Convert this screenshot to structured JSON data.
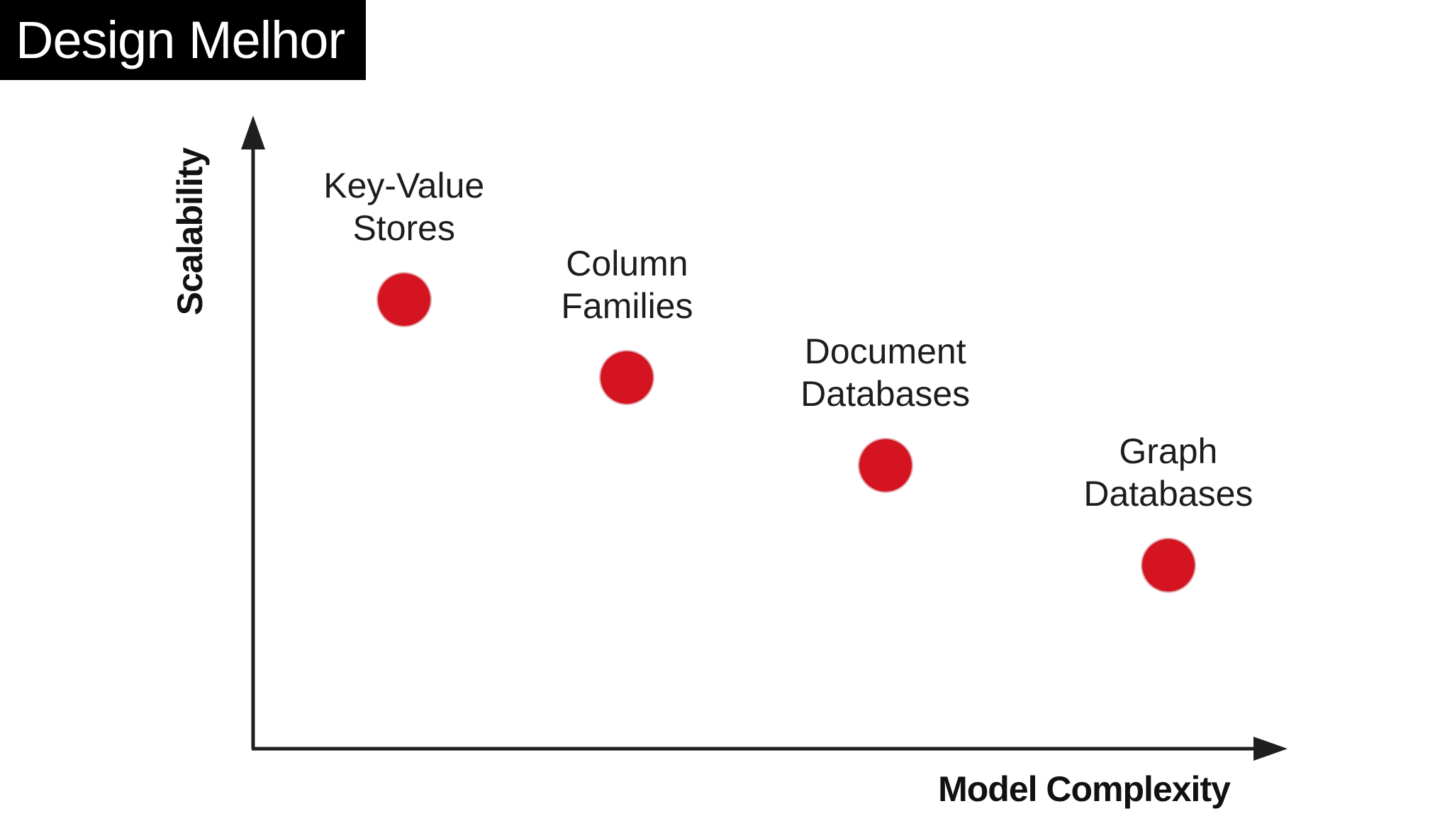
{
  "banner": {
    "title": "Design Melhor"
  },
  "chart_data": {
    "type": "scatter",
    "title": "",
    "xlabel": "Model Complexity",
    "ylabel": "Scalability",
    "axes_numeric": false,
    "gridlines": false,
    "legend": "none",
    "axis_style": "arrows, no tick marks or tick labels",
    "trend_note": "scalability decreases as model complexity increases",
    "marker": {
      "shape": "circle",
      "color": "#d41420",
      "radius_px": 37
    },
    "points": [
      {
        "label": "Key-Value Stores",
        "label_lines": [
          "Key-Value",
          "Stores"
        ],
        "x": 0.146,
        "y": 0.711
      },
      {
        "label": "Column Families",
        "label_lines": [
          "Column",
          "Families"
        ],
        "x": 0.362,
        "y": 0.587
      },
      {
        "label": "Document Databases",
        "label_lines": [
          "Document",
          "Databases"
        ],
        "x": 0.612,
        "y": 0.448
      },
      {
        "label": "Graph Databases",
        "label_lines": [
          "Graph",
          "Databases"
        ],
        "x": 0.886,
        "y": 0.29
      }
    ]
  },
  "colors": {
    "background": "#ffffff",
    "banner_bg": "#000000",
    "banner_text": "#ffffff",
    "axis": "#1f1f1f",
    "axis_label": "#111111",
    "label_text": "#1d1d1d",
    "dot": "#d41420"
  }
}
